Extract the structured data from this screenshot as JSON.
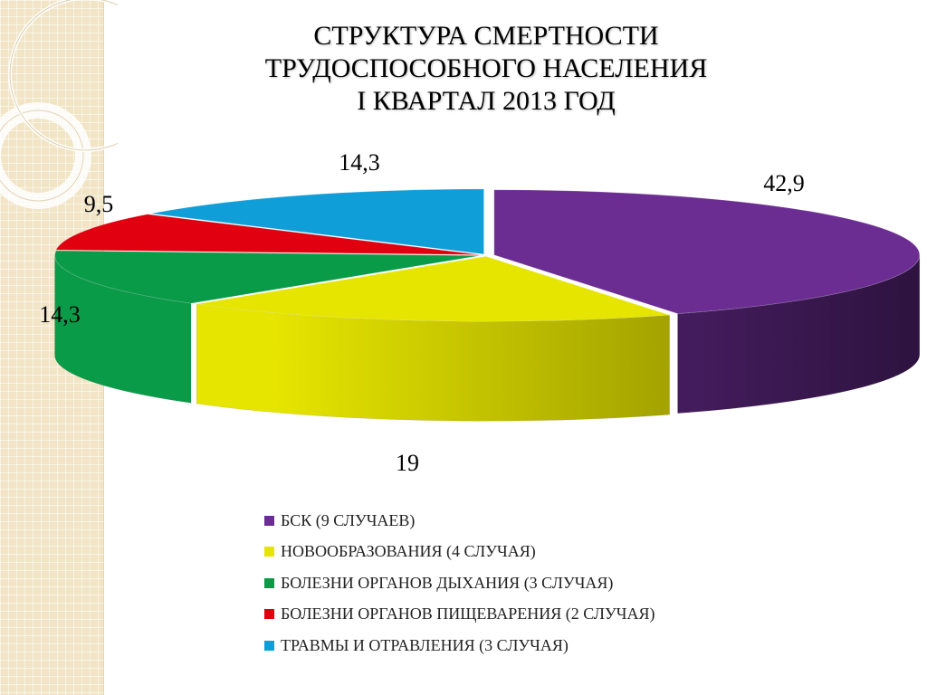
{
  "slide": {
    "title": "СТРУКТУРА  СМЕРТНОСТИ\nТРУДОСПОСОБНОГО  НАСЕЛЕНИЯ\nI  КВАРТАЛ   2013   ГОД"
  },
  "chart_data": {
    "type": "pie",
    "style": "3d-exploded",
    "title": "СТРУКТУРА  СМЕРТНОСТИ ТРУДОСПОСОБНОГО  НАСЕЛЕНИЯ I  КВАРТАЛ   2013   ГОД",
    "legend_position": "bottom",
    "slices": [
      {
        "label": "БСК (9 СЛУЧАЕВ)",
        "value": 42.9,
        "value_label": "42,9",
        "color": "#6b2d92",
        "dark": "#2e1340"
      },
      {
        "label": "НОВООБРАЗОВАНИЯ (4 СЛУЧАЯ)",
        "value": 19,
        "value_label": "19",
        "color": "#e6e500",
        "dark": "#7a7a00"
      },
      {
        "label": "БОЛЕЗНИ ОРГАНОВ ДЫХАНИЯ (3 СЛУЧАЯ)",
        "value": 14.3,
        "value_label": "14,3",
        "color": "#0a9b49",
        "dark": "#075f2c"
      },
      {
        "label": "БОЛЕЗНИ ОРГАНОВ ПИЩЕВАРЕНИЯ (2 СЛУЧАЯ)",
        "value": 9.5,
        "value_label": "9,5",
        "color": "#e00010",
        "dark": "#7a0008"
      },
      {
        "label": "ТРАВМЫ И ОТРАВЛЕНИЯ (3 СЛУЧАЯ)",
        "value": 14.3,
        "value_label": "14,3",
        "color": "#0f9ed8",
        "dark": "#0a6b94"
      }
    ]
  }
}
